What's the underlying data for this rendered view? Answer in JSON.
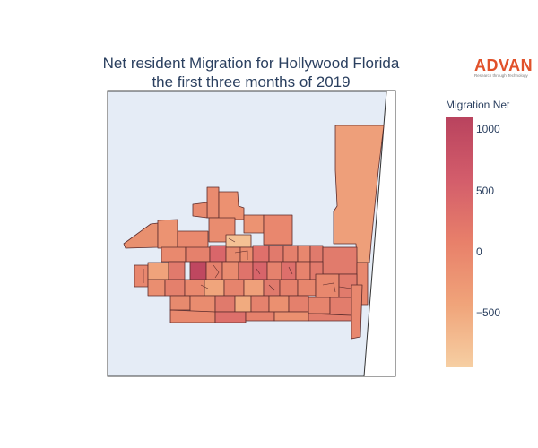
{
  "title": {
    "line1": "Net resident Migration for Hollywood Florida",
    "line2": "the first three months of 2019"
  },
  "logo": {
    "name": "ADVAN",
    "tagline": "Research through Technology"
  },
  "colorbar": {
    "title": "Migration Net",
    "ticks": [
      "1000",
      "500",
      "0",
      "−500"
    ],
    "range": [
      -950,
      1100
    ],
    "colors": [
      "#f6cfa3",
      "#f0a47a",
      "#e8806a",
      "#d35d6b",
      "#b9435e"
    ]
  },
  "map": {
    "land_color": "#e5ecf6",
    "water_color": "#ffffff",
    "border_color": "#5b2b2b"
  }
}
